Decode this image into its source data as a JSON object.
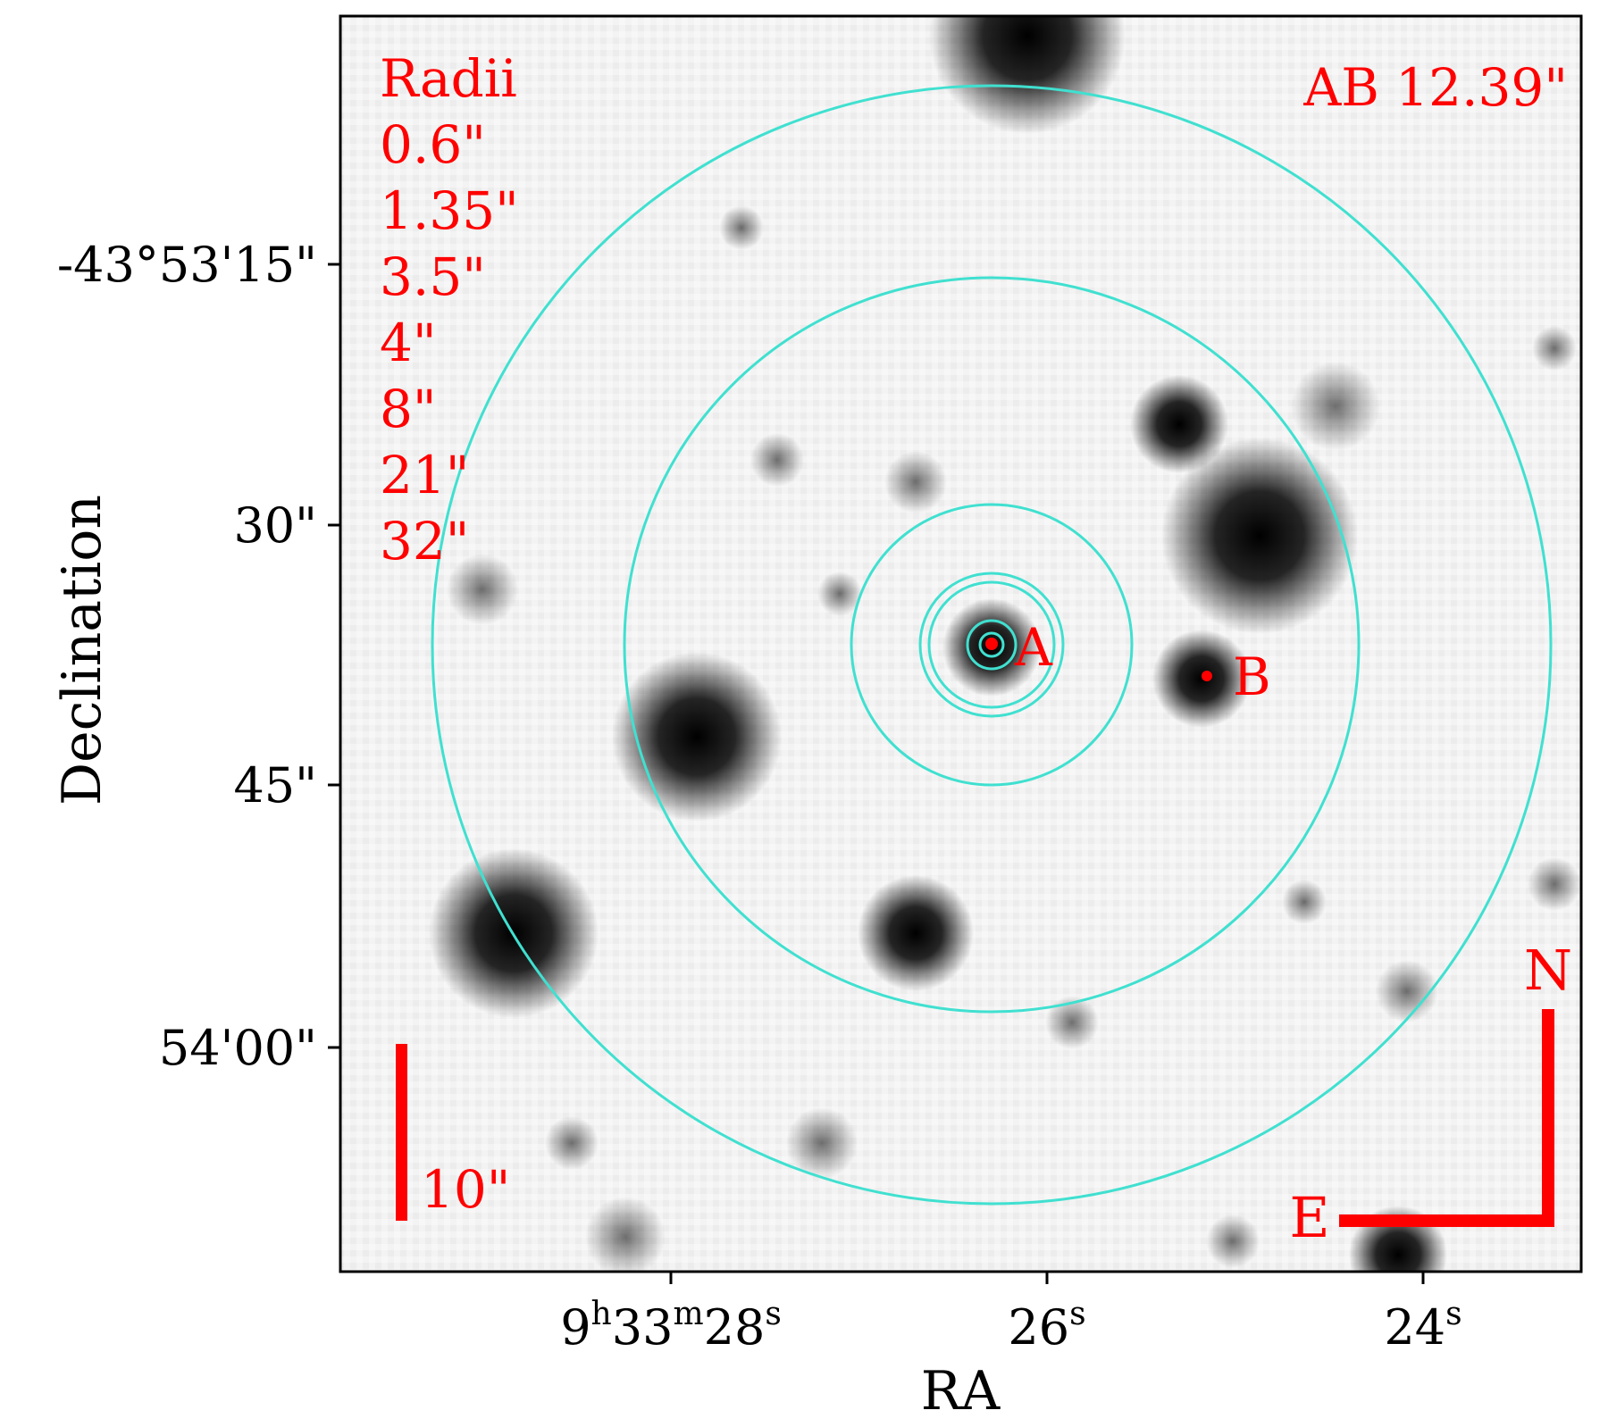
{
  "figure": {
    "xlabel": "RA",
    "ylabel": "Declination",
    "ra_ticks": [
      {
        "h": "9",
        "h_unit": "h",
        "m": "33",
        "m_unit": "m",
        "s": "28",
        "s_unit": "s"
      },
      {
        "s": "26",
        "s_unit": "s"
      },
      {
        "s": "24",
        "s_unit": "s"
      }
    ],
    "dec_ticks": [
      "-43°53'15\"",
      "30\"",
      "45\"",
      "54'00\""
    ],
    "radii_title": "Radii",
    "radii": [
      "0.6\"",
      "1.35\"",
      "3.5\"",
      "4\"",
      "8\"",
      "21\"",
      "32\""
    ],
    "ab_label": "AB 12.39\"",
    "source_labels": [
      "A",
      "B"
    ],
    "scale_bar_label": "10\"",
    "compass": {
      "north": "N",
      "east": "E"
    },
    "colors": {
      "circles": "#40e0d0",
      "annotations": "#ff0000",
      "background": "#f2f2f2",
      "stars": "#000000"
    }
  }
}
